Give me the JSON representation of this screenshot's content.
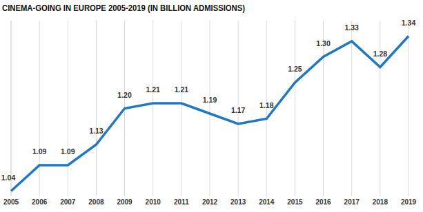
{
  "chart_data": {
    "type": "line",
    "title": "CINEMA-GOING IN EUROPE 2005-2019 (IN BILLION ADMISSIONS)",
    "categories": [
      "2005",
      "2006",
      "2007",
      "2008",
      "2009",
      "2010",
      "2011",
      "2012",
      "2013",
      "2014",
      "2015",
      "2016",
      "2017",
      "2018",
      "2019"
    ],
    "values": [
      1.04,
      1.09,
      1.09,
      1.13,
      1.2,
      1.21,
      1.21,
      1.19,
      1.17,
      1.18,
      1.25,
      1.3,
      1.33,
      1.28,
      1.34
    ],
    "value_labels": [
      "1.04",
      "1.09",
      "1.09",
      "1.13",
      "1.20",
      "1.21",
      "1.21",
      "1.19",
      "1.17",
      "1.18",
      "1.25",
      "1.30",
      "1.33",
      "1.28",
      "1.34"
    ],
    "color": "#1f78c1",
    "ylim": [
      1.03,
      1.37
    ],
    "grid": true,
    "data_labels": true,
    "tick_labels": "x"
  }
}
